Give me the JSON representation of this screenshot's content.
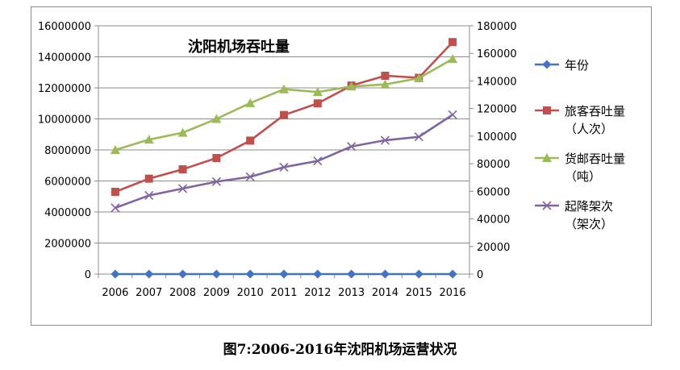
{
  "caption": "图7:2006-2016年沈阳机场运营状况",
  "chart_data": {
    "type": "line",
    "title": "沈阳机场吞吐量",
    "x": [
      "2006",
      "2007",
      "2008",
      "2009",
      "2010",
      "2011",
      "2012",
      "2013",
      "2014",
      "2015",
      "2016"
    ],
    "y_left": {
      "min": 0,
      "max": 16000000,
      "step": 2000000,
      "ticks": [
        "0",
        "2000000",
        "4000000",
        "6000000",
        "8000000",
        "10000000",
        "12000000",
        "14000000",
        "16000000"
      ]
    },
    "y_right": {
      "min": 0,
      "max": 180000,
      "step": 20000,
      "ticks": [
        "0",
        "20000",
        "40000",
        "60000",
        "80000",
        "100000",
        "120000",
        "140000",
        "160000",
        "180000"
      ]
    },
    "grid": "horizontal",
    "legend_position": "right",
    "series": [
      {
        "name": "年份",
        "label_lines": [
          "年份"
        ],
        "axis": "left",
        "marker": "diamond",
        "color": "#4472C4",
        "values": [
          0,
          0,
          0,
          0,
          0,
          0,
          0,
          0,
          0,
          0,
          0
        ]
      },
      {
        "name": "旅客吞吐量（人次）",
        "label_lines": [
          "旅客吞吐量",
          "（人次）"
        ],
        "axis": "left",
        "marker": "square",
        "color": "#C0504D",
        "values": [
          5300000,
          6150000,
          6750000,
          7480000,
          8600000,
          10250000,
          11000000,
          12150000,
          12780000,
          12650000,
          14950000
        ]
      },
      {
        "name": "货邮吞吐量（吨）",
        "label_lines": [
          "货邮吞吐量",
          "（吨）"
        ],
        "axis": "right",
        "marker": "triangle",
        "color": "#9BBB59",
        "values": [
          90000,
          97500,
          102500,
          112500,
          124000,
          134000,
          132000,
          136000,
          137500,
          142000,
          156000
        ]
      },
      {
        "name": "起降架次（架次）",
        "label_lines": [
          "起降架次",
          "（架次）"
        ],
        "axis": "right",
        "marker": "x",
        "color": "#8064A2",
        "values": [
          48000,
          57000,
          62000,
          67000,
          70500,
          77500,
          82000,
          92500,
          97000,
          99500,
          115500
        ]
      }
    ]
  }
}
